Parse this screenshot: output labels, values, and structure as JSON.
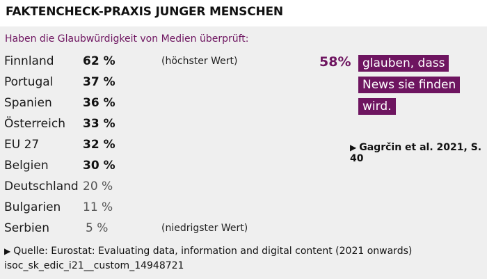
{
  "title": "FAKTENCHECK-PRAXIS JUNGER MENSCHEN",
  "subtitle": "Haben die Glaubwürdigkeit von Medien überprüft:",
  "rows": [
    {
      "country": "Finnland",
      "value": "62 %",
      "bold": true,
      "note": "(höchster Wert)"
    },
    {
      "country": "Portugal",
      "value": "37 %",
      "bold": true,
      "note": ""
    },
    {
      "country": "Spanien",
      "value": "36 %",
      "bold": true,
      "note": ""
    },
    {
      "country": "Österreich",
      "value": "33 %",
      "bold": true,
      "note": ""
    },
    {
      "country": "EU 27",
      "value": "32 %",
      "bold": true,
      "note": ""
    },
    {
      "country": "Belgien",
      "value": "30 %",
      "bold": true,
      "note": ""
    },
    {
      "country": "Deutschland",
      "value": "20 %",
      "bold": false,
      "note": ""
    },
    {
      "country": "Bulgarien",
      "value": "11 %",
      "bold": false,
      "note": ""
    },
    {
      "country": "Serbien",
      "value": "5 %",
      "bold": false,
      "note": "(niedrigster Wert)"
    }
  ],
  "callout": {
    "percent": "58%",
    "lines": [
      "glauben, dass",
      "News sie finden",
      "wird."
    ]
  },
  "citation": "Gagrčin et al. 2021, S. 40",
  "source": "Quelle: Eurostat: Evaluating data, information and digital content (2021 onwards)  isoc_sk_edic_i21__custom_14948721",
  "colors": {
    "accent": "#6e1560",
    "background": "#efefef",
    "title_bar": "#ffffff"
  },
  "icons": {
    "pointer": "triangle-right-icon"
  }
}
